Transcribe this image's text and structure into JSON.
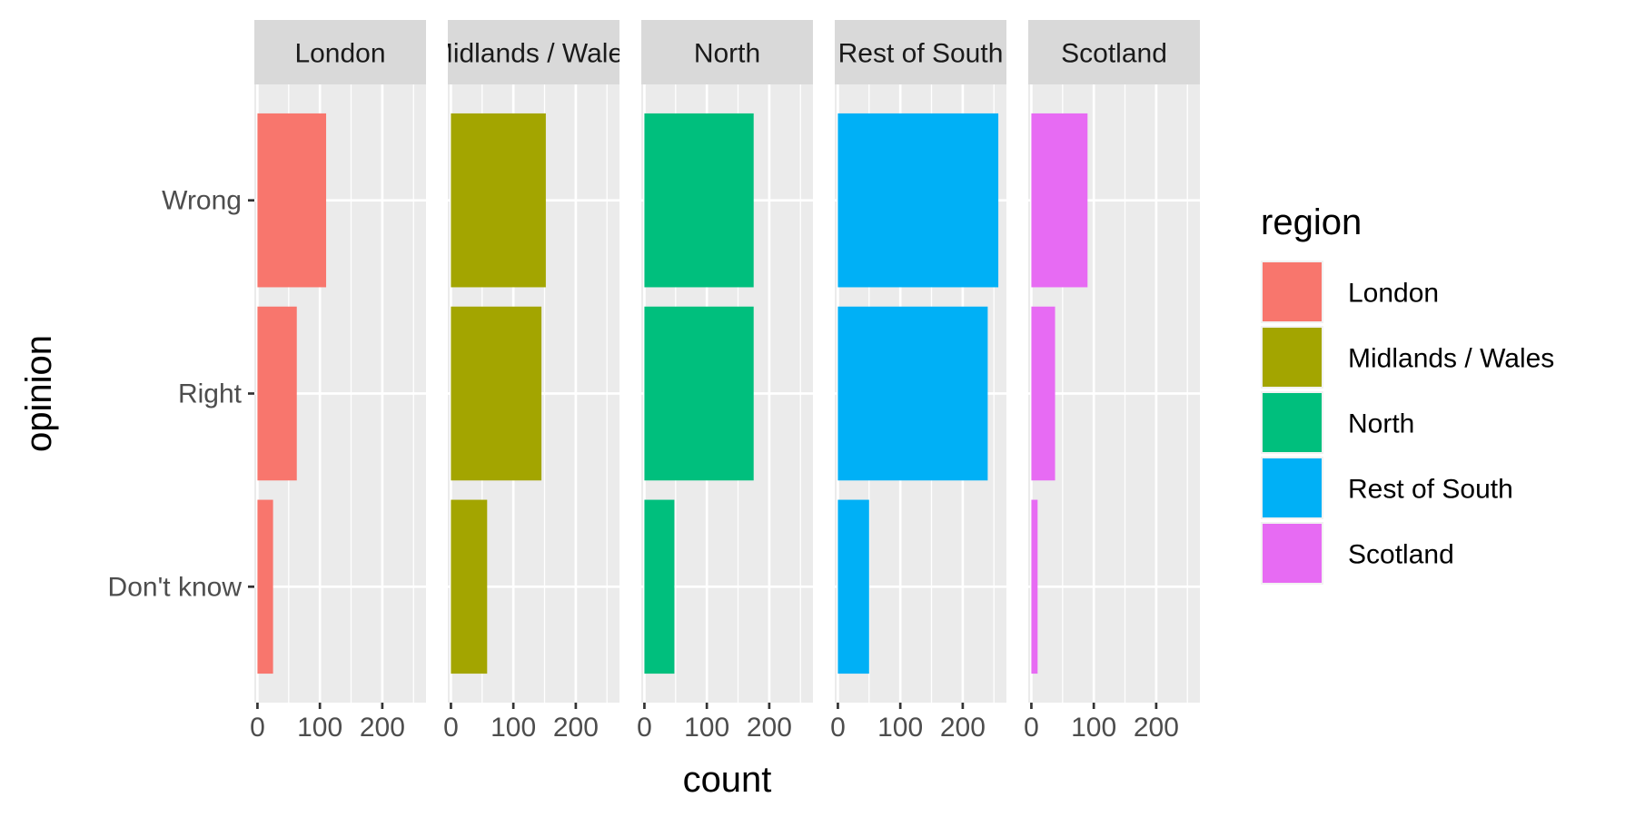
{
  "chart_data": {
    "type": "bar",
    "orientation": "horizontal",
    "facet_variable": "region",
    "panels": [
      "London",
      "Midlands / Wales",
      "North",
      "Rest of South",
      "Scotland"
    ],
    "categories": [
      "Wrong",
      "Right",
      "Don't know"
    ],
    "series": [
      {
        "name": "London",
        "values": [
          110,
          63,
          25
        ],
        "color": "#F8766D"
      },
      {
        "name": "Midlands / Wales",
        "values": [
          152,
          145,
          58
        ],
        "color": "#A3A500"
      },
      {
        "name": "North",
        "values": [
          175,
          175,
          48
        ],
        "color": "#00BF7D"
      },
      {
        "name": "Rest of South",
        "values": [
          257,
          240,
          50
        ],
        "color": "#00B0F6"
      },
      {
        "name": "Scotland",
        "values": [
          90,
          38,
          10
        ],
        "color": "#E76BF3"
      }
    ],
    "xlabel": "count",
    "ylabel": "opinion",
    "xlim": [
      -5,
      270
    ],
    "xticks": [
      0,
      100,
      200
    ],
    "grid": true,
    "legend": {
      "title": "region",
      "placement": "right"
    },
    "panel_background": "#ebebeb",
    "strip_background": "#d9d9d9"
  }
}
